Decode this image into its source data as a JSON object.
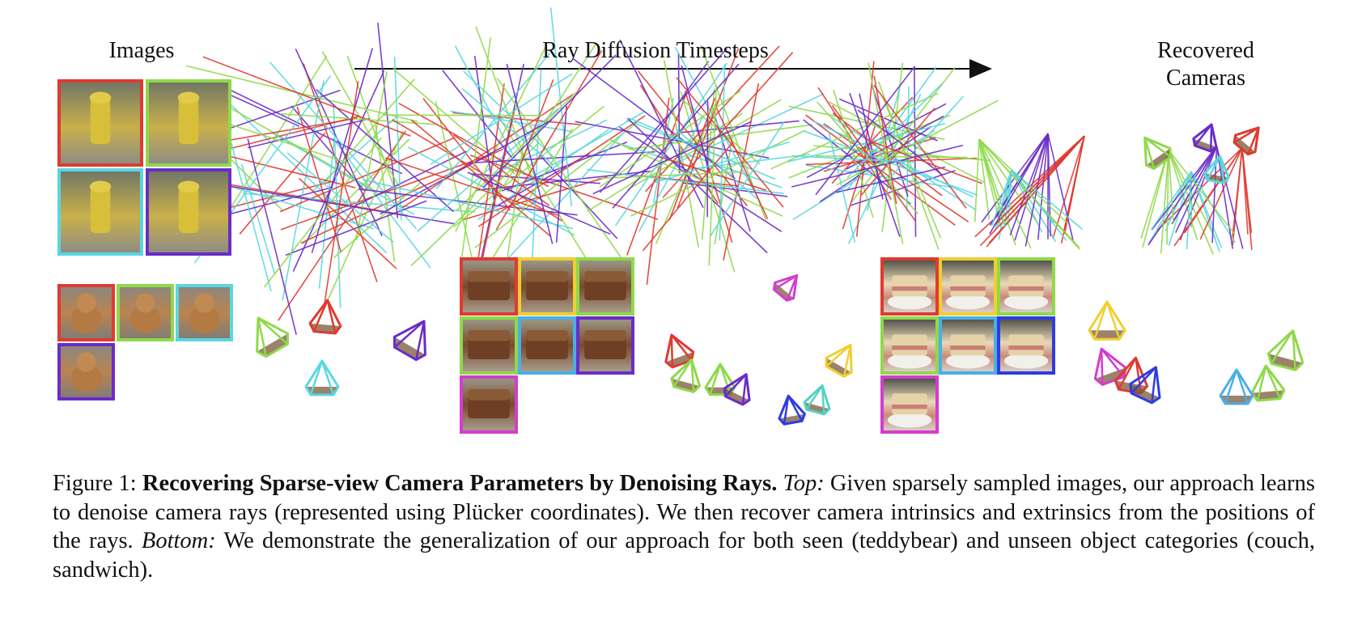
{
  "headers": {
    "images": "Images",
    "ray_diffusion": "Ray Diffusion Timesteps",
    "recovered_1": "Recovered",
    "recovered_2": "Cameras"
  },
  "colors": {
    "red": "#e03a30",
    "green": "#8fd94a",
    "cyan": "#5ad6e0",
    "purple": "#6a2cc9",
    "yellow": "#f0cf32",
    "blue": "#2e3ce0",
    "skyblue": "#4aaee8",
    "magenta": "#d43ccf",
    "teal": "#54d3c2"
  },
  "ray_groups": [
    {
      "spread": 1.0,
      "line_count": 60
    },
    {
      "spread": 0.8,
      "line_count": 60
    },
    {
      "spread": 0.6,
      "line_count": 60
    },
    {
      "spread": 0.42,
      "line_count": 56
    },
    {
      "spread": 0.18,
      "line_count": 44
    },
    {
      "spread": 0.1,
      "line_count": 36
    }
  ],
  "thumbnails": {
    "hydrant": [
      "red",
      "green",
      "cyan",
      "purple"
    ],
    "teddybear": [
      "red",
      "green",
      "cyan",
      "purple"
    ],
    "couch": [
      "red",
      "yellow",
      "green",
      "green",
      "skyblue",
      "purple",
      "magenta"
    ],
    "sandwich": [
      "red",
      "yellow",
      "green",
      "green",
      "skyblue",
      "blue",
      "magenta"
    ]
  },
  "caption": {
    "label": "Figure 1:",
    "title": "Recovering Sparse-view Camera Parameters by Denoising Rays.",
    "top_label": "Top:",
    "top_text": "Given sparsely sampled images, our approach learns to denoise camera rays (represented using Plücker coordinates). We then recover camera intrinsics and extrinsics from the positions of the rays.",
    "bottom_label": "Bottom:",
    "bottom_text": "We demonstrate the generalization of our approach for both seen (teddybear) and unseen object categories (couch, sandwich)."
  }
}
